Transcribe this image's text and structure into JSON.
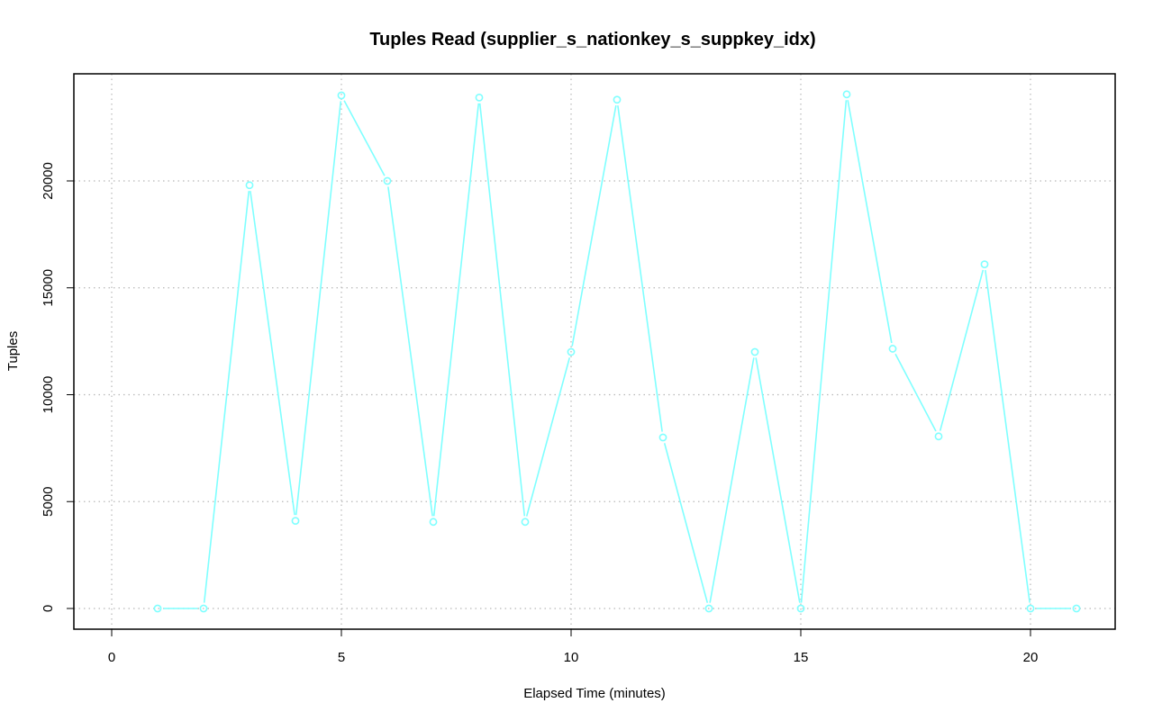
{
  "chart_data": {
    "type": "line",
    "title": "Tuples Read (supplier_s_nationkey_s_suppkey_idx)",
    "xlabel": "Elapsed Time (minutes)",
    "ylabel": "Tuples",
    "xlim": [
      0,
      21
    ],
    "ylim": [
      0,
      24000
    ],
    "x_ticks": [
      0,
      5,
      10,
      15,
      20
    ],
    "x_tick_labels": [
      "0",
      "5",
      "10",
      "15",
      "20"
    ],
    "y_ticks": [
      0,
      5000,
      10000,
      15000,
      20000
    ],
    "y_tick_labels": [
      "0",
      "5000",
      "10000",
      "15000",
      "20000"
    ],
    "grid": true,
    "series": [
      {
        "color": "#7fffff",
        "marker": "open-circle",
        "x": [
          1,
          2,
          3,
          4,
          5,
          6,
          7,
          8,
          9,
          10,
          11,
          12,
          13,
          14,
          15,
          16,
          17,
          18,
          19,
          20,
          21
        ],
        "values": [
          0,
          0,
          19800,
          4100,
          24000,
          20000,
          4050,
          23900,
          4050,
          12000,
          23800,
          8000,
          0,
          12000,
          0,
          24050,
          12150,
          8050,
          16100,
          0,
          0
        ]
      }
    ]
  }
}
